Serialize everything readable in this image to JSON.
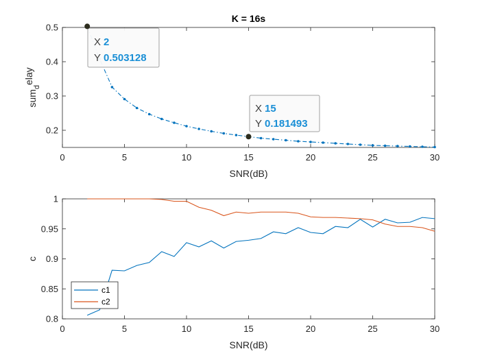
{
  "chart_data": [
    {
      "type": "line",
      "title": "K = 16s",
      "xlabel": "SNR(dB)",
      "ylabel_main": "sum",
      "ylabel_sub": "d",
      "ylabel_sup": "elay",
      "xlim": [
        0,
        30
      ],
      "ylim": [
        0.15,
        0.5
      ],
      "xticks": [
        0,
        5,
        10,
        15,
        20,
        25,
        30
      ],
      "yticks": [
        0.2,
        0.3,
        0.4,
        0.5
      ],
      "series": [
        {
          "color": "#0072BD",
          "style": "dash-dot",
          "x": [
            2,
            3,
            4,
            5,
            6,
            7,
            8,
            9,
            10,
            11,
            12,
            13,
            14,
            15,
            16,
            17,
            18,
            19,
            20,
            21,
            22,
            23,
            24,
            25,
            26,
            27,
            28,
            29,
            30
          ],
          "y": [
            0.503128,
            0.408,
            0.326,
            0.291,
            0.265,
            0.247,
            0.233,
            0.222,
            0.212,
            0.204,
            0.197,
            0.191,
            0.186,
            0.181493,
            0.177,
            0.174,
            0.171,
            0.168,
            0.166,
            0.164,
            0.162,
            0.16,
            0.158,
            0.156,
            0.155,
            0.154,
            0.153,
            0.152,
            0.151
          ]
        }
      ],
      "datatips": [
        {
          "x_key": "X",
          "x_val": "2",
          "y_key": "Y",
          "y_val": "0.503128",
          "x": 2,
          "y": 0.503128
        },
        {
          "x_key": "X",
          "x_val": "15",
          "y_key": "Y",
          "y_val": "0.181493",
          "x": 15,
          "y": 0.181493
        }
      ]
    },
    {
      "type": "line",
      "title": "",
      "xlabel": "SNR(dB)",
      "ylabel": "c",
      "xlim": [
        0,
        30
      ],
      "ylim": [
        0.8,
        1
      ],
      "xticks": [
        0,
        5,
        10,
        15,
        20,
        25,
        30
      ],
      "yticks": [
        0.8,
        0.85,
        0.9,
        0.95,
        1
      ],
      "legend_position": "bottom-left",
      "series": [
        {
          "name": "c1",
          "color": "#0072BD",
          "x": [
            2,
            3,
            4,
            5,
            6,
            7,
            8,
            9,
            10,
            11,
            12,
            13,
            14,
            15,
            16,
            17,
            18,
            19,
            20,
            21,
            22,
            23,
            24,
            25,
            26,
            27,
            28,
            29,
            30
          ],
          "y": [
            0.806,
            0.815,
            0.881,
            0.88,
            0.889,
            0.894,
            0.912,
            0.904,
            0.927,
            0.92,
            0.93,
            0.918,
            0.929,
            0.931,
            0.934,
            0.945,
            0.942,
            0.952,
            0.944,
            0.942,
            0.954,
            0.952,
            0.966,
            0.953,
            0.966,
            0.96,
            0.961,
            0.969,
            0.967
          ]
        },
        {
          "name": "c2",
          "color": "#D95319",
          "x": [
            2,
            3,
            4,
            5,
            6,
            7,
            8,
            9,
            10,
            11,
            12,
            13,
            14,
            15,
            16,
            17,
            18,
            19,
            20,
            21,
            22,
            23,
            24,
            25,
            26,
            27,
            28,
            29,
            30
          ],
          "y": [
            1.0,
            1.0,
            1.0,
            1.0,
            1.0,
            1.0,
            0.999,
            0.996,
            0.996,
            0.986,
            0.981,
            0.972,
            0.978,
            0.976,
            0.978,
            0.978,
            0.978,
            0.976,
            0.97,
            0.969,
            0.969,
            0.968,
            0.967,
            0.965,
            0.958,
            0.954,
            0.954,
            0.952,
            0.946
          ]
        }
      ]
    }
  ]
}
